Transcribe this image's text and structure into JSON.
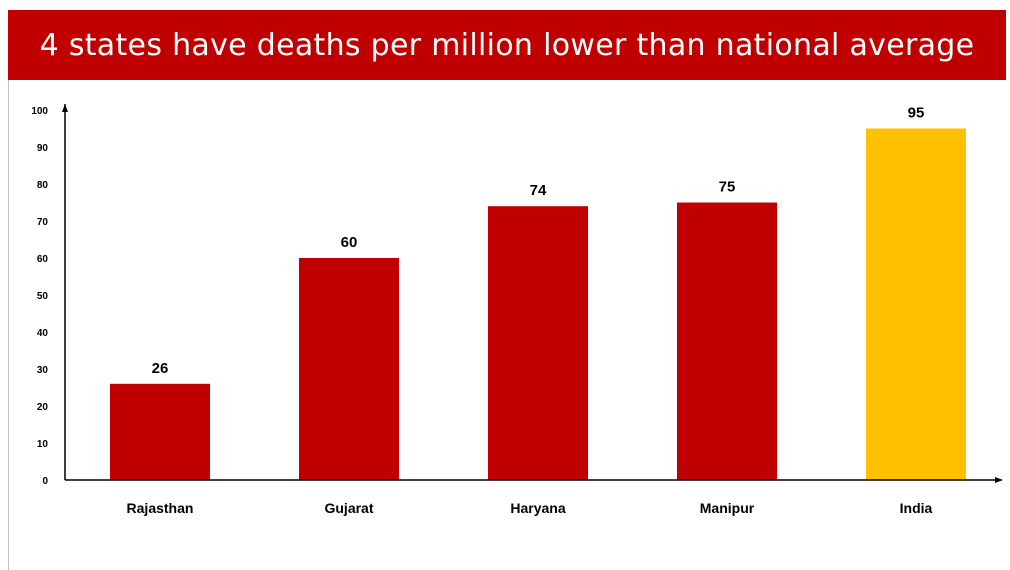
{
  "chart_data": {
    "type": "bar",
    "title": "4 states have deaths per million lower than national average",
    "categories": [
      "Rajasthan",
      "Gujarat",
      "Haryana",
      "Manipur",
      "India"
    ],
    "values": [
      26,
      60,
      74,
      75,
      95
    ],
    "bar_colors": [
      "#c00000",
      "#c00000",
      "#c00000",
      "#c00000",
      "#ffc000"
    ],
    "ylim": [
      0,
      100
    ],
    "yticks": [
      0,
      10,
      20,
      30,
      40,
      50,
      60,
      70,
      80,
      90,
      100
    ],
    "xlabel": "",
    "ylabel": "",
    "grid": false,
    "data_labels": true
  },
  "colors": {
    "banner": "#c00000",
    "banner_text": "#ffffff",
    "axis": "#000000"
  }
}
